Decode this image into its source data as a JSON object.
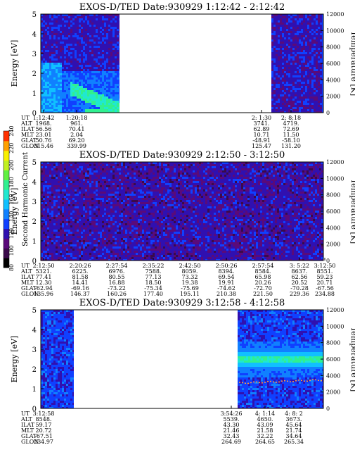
{
  "colorbar": {
    "label": "Second Harmonic Current",
    "ticks": [
      "80",
      "100",
      "120",
      "140",
      "160",
      "180",
      "200",
      "220",
      "240"
    ],
    "colors": [
      "#000000",
      "#3a0a4a",
      "#5a0a7a",
      "#3010b0",
      "#1040ff",
      "#1080ff",
      "#10c0ff",
      "#20e8d0",
      "#30f090",
      "#60f040",
      "#c0f020",
      "#f8f000",
      "#ffa000",
      "#ff3000"
    ]
  },
  "chart_data": [
    {
      "type": "heatmap",
      "title": "EXOS-D/TED   Date:930929   1:12:42 - 2:12:42",
      "ylabel": "Energy [eV]",
      "ylabel_right": "Temperature [K]",
      "ylim": [
        0,
        5
      ],
      "ylim_right": [
        0,
        12000
      ],
      "yticks": [
        "0",
        "1",
        "2",
        "3",
        "4",
        "5"
      ],
      "yticks_right": [
        "0",
        "2000",
        "4000",
        "6000",
        "8000",
        "10000",
        "12000"
      ],
      "row_labels": [
        "UT",
        "ALT",
        "ILAT",
        "MLT",
        "GLAT",
        "GLON"
      ],
      "orbit_columns": [
        {
          "values": [
            "1:12:42",
            "1968.",
            "56.56",
            "23.01",
            "50.76",
            "315.46"
          ]
        },
        {
          "values": [
            "1:20:18",
            "961.",
            "70.41",
            "2.04",
            "69.20",
            "339.99"
          ]
        },
        {
          "values": [
            "2: 1:30",
            "3741.",
            "62.89",
            "10.71",
            "-48.91",
            "125.47"
          ]
        },
        {
          "values": [
            "2: 8:18",
            "4719.",
            "72.69",
            "11.50",
            "-58.10",
            "131.20"
          ]
        }
      ],
      "data_segments": [
        "1:12:42 - 1:20:18",
        "2: 1:30 - 2:12:42"
      ]
    },
    {
      "type": "heatmap",
      "title": "EXOS-D/TED   Date:930929   2:12:50 - 3:12:50",
      "ylabel": "Energy [eV]",
      "ylabel_right": "Temperature [K]",
      "ylim": [
        0,
        5
      ],
      "ylim_right": [
        0,
        12000
      ],
      "yticks": [
        "0",
        "1",
        "2",
        "3",
        "4",
        "5"
      ],
      "yticks_right": [
        "0",
        "2000",
        "4000",
        "6000",
        "8000",
        "10000",
        "12000"
      ],
      "row_labels": [
        "UT",
        "ALT",
        "ILAT",
        "MLT",
        "GLAT",
        "GLON"
      ],
      "orbit_columns": [
        {
          "values": [
            "2:12:50",
            "5321.",
            "77.41",
            "12.30",
            "-62.94",
            "135.96"
          ]
        },
        {
          "values": [
            "2:20:26",
            "6225.",
            "81.58",
            "14.41",
            "-69.16",
            "146.37"
          ]
        },
        {
          "values": [
            "2:27:54",
            "6976.",
            "80.55",
            "16.88",
            "-73.22",
            "160.26"
          ]
        },
        {
          "values": [
            "2:35:22",
            "7588.",
            "77.13",
            "18.50",
            "-75.34",
            "177.40"
          ]
        },
        {
          "values": [
            "2:42:50",
            "8059.",
            "73.32",
            "19.38",
            "-75.69",
            "195.11"
          ]
        },
        {
          "values": [
            "2:50:26",
            "8394.",
            "69.54",
            "19.91",
            "-74.62",
            "210.38"
          ]
        },
        {
          "values": [
            "2:57:54",
            "8584.",
            "65.98",
            "20.26",
            "-72.70",
            "221.50"
          ]
        },
        {
          "values": [
            "3: 5:22",
            "8637.",
            "62.56",
            "20.52",
            "-70.28",
            "229.36"
          ]
        },
        {
          "values": [
            "3:12:50",
            "8551.",
            "59.23",
            "20.71",
            "-67.56",
            "234.88"
          ]
        }
      ],
      "data_segments": [
        "2:12:50 - 3:12:50"
      ]
    },
    {
      "type": "heatmap",
      "title": "EXOS-D/TED   Date:930929   3:12:58 - 4:12:58",
      "ylabel": "Energy [eV]",
      "ylabel_right": "Temperature [K]",
      "ylim": [
        0,
        5
      ],
      "ylim_right": [
        0,
        12000
      ],
      "yticks": [
        "0",
        "1",
        "2",
        "3",
        "4",
        "5"
      ],
      "yticks_right": [
        "0",
        "2000",
        "4000",
        "6000",
        "8000",
        "10000",
        "12000"
      ],
      "row_labels": [
        "UT",
        "ALT",
        "ILAT",
        "MLT",
        "GLAT",
        "GLON"
      ],
      "orbit_columns": [
        {
          "values": [
            "3:12:58",
            "8548.",
            "59.17",
            "20.72",
            "-67.51",
            "234.97"
          ]
        },
        {
          "values": [
            "3:54:26",
            "5539.",
            "43.30",
            "21.46",
            "32.43",
            "264.69"
          ]
        },
        {
          "values": [
            "4: 1:14",
            "4650.",
            "43.09",
            "21.58",
            "32.22",
            "264.65"
          ]
        },
        {
          "values": [
            "4: 8: 2",
            "3673.",
            "45.64",
            "21.74",
            "34.64",
            "265.34"
          ]
        }
      ],
      "data_segments": [
        "3:12:58 - 3:20:30",
        "3:54:26 - 4:12:58"
      ]
    }
  ]
}
